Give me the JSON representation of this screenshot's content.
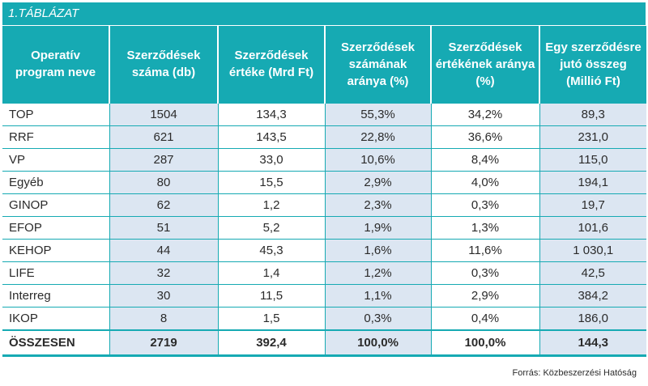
{
  "table": {
    "caption": "1.TÁBLÁZAT",
    "headers": [
      "Operatív program neve",
      "Szerződések száma (db)",
      "Szerződések értéke (Mrd Ft)",
      "Szerződések számának aránya (%)",
      "Szerződések értékének aránya (%)",
      "Egy szerződésre jutó összeg (Millió Ft)"
    ],
    "rows": [
      [
        "TOP",
        "1504",
        "134,3",
        "55,3%",
        "34,2%",
        "89,3"
      ],
      [
        "RRF",
        "621",
        "143,5",
        "22,8%",
        "36,6%",
        "231,0"
      ],
      [
        "VP",
        "287",
        "33,0",
        "10,6%",
        "8,4%",
        "115,0"
      ],
      [
        "Egyéb",
        "80",
        "15,5",
        "2,9%",
        "4,0%",
        "194,1"
      ],
      [
        "GINOP",
        "62",
        "1,2",
        "2,3%",
        "0,3%",
        "19,7"
      ],
      [
        "EFOP",
        "51",
        "5,2",
        "1,9%",
        "1,3%",
        "101,6"
      ],
      [
        "KEHOP",
        "44",
        "45,3",
        "1,6%",
        "11,6%",
        "1 030,1"
      ],
      [
        "LIFE",
        "32",
        "1,4",
        "1,2%",
        "0,3%",
        "42,5"
      ],
      [
        "Interreg",
        "30",
        "11,5",
        "1,1%",
        "2,9%",
        "384,2"
      ],
      [
        "IKOP",
        "8",
        "1,5",
        "0,3%",
        "0,4%",
        "186,0"
      ]
    ],
    "total": [
      "ÖSSZESEN",
      "2719",
      "392,4",
      "100,0%",
      "100,0%",
      "144,3"
    ]
  },
  "source": "Forrás: Közbeszerzési Hatóság",
  "colors": {
    "header_bg": "#16aab3",
    "shaded_cell": "#dce6f2",
    "text": "#2b2b2b"
  }
}
